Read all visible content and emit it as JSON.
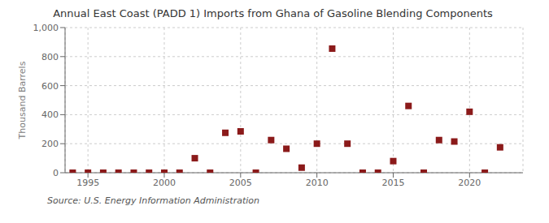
{
  "chart_data": {
    "type": "scatter",
    "title": "Annual East Coast (PADD 1) Imports from Ghana of Gasoline Blending Components",
    "ylabel": "Thousand Barrels",
    "annotation": "Source: U.S. Energy Information Administration",
    "color": "#8b1a1a",
    "marker": "square",
    "grid": true,
    "xlim": [
      1993.5,
      2023.5
    ],
    "ylim": [
      0,
      1000
    ],
    "xticks": [
      1995,
      2000,
      2005,
      2010,
      2015,
      2020
    ],
    "yticks": [
      0,
      200,
      400,
      600,
      800,
      {
        "value": 1000,
        "label": "1,000"
      }
    ],
    "x": [
      1994,
      1995,
      1996,
      1997,
      1998,
      1999,
      2000,
      2001,
      2002,
      2003,
      2004,
      2005,
      2006,
      2007,
      2008,
      2009,
      2010,
      2011,
      2012,
      2013,
      2014,
      2015,
      2016,
      2017,
      2018,
      2019,
      2020,
      2021,
      2022
    ],
    "values": [
      0,
      0,
      0,
      0,
      0,
      0,
      0,
      0,
      100,
      0,
      275,
      285,
      0,
      225,
      165,
      35,
      200,
      855,
      200,
      0,
      0,
      80,
      460,
      0,
      225,
      215,
      420,
      0,
      175
    ]
  }
}
